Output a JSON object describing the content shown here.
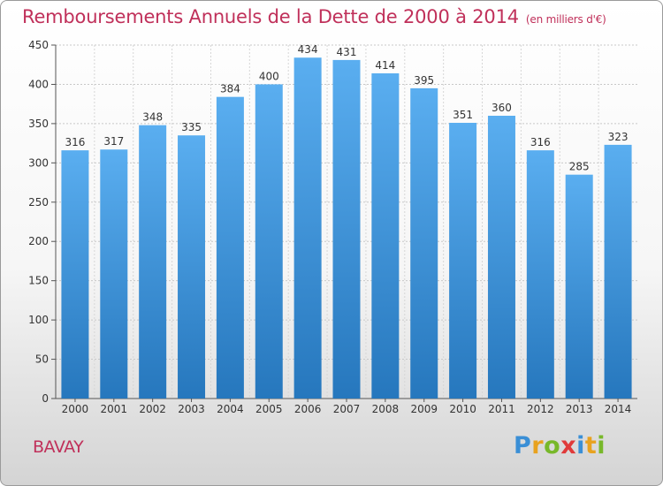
{
  "title": "Remboursements Annuels de la Dette de 2000 à 2014",
  "unit": "(en milliers d'€)",
  "commune": "BAVAY",
  "logo": [
    "P",
    "r",
    "o",
    "x",
    "i",
    "t",
    "i"
  ],
  "colors": {
    "bar_top": "#5aaef0",
    "bar_bottom": "#2677bd",
    "title": "#c0305a"
  },
  "chart_data": {
    "type": "bar",
    "categories": [
      "2000",
      "2001",
      "2002",
      "2003",
      "2004",
      "2005",
      "2006",
      "2007",
      "2008",
      "2009",
      "2010",
      "2011",
      "2012",
      "2013",
      "2014"
    ],
    "values": [
      316,
      317,
      348,
      335,
      384,
      400,
      434,
      431,
      414,
      395,
      351,
      360,
      316,
      285,
      323
    ],
    "ylim": [
      0,
      450
    ],
    "yticks": [
      0,
      50,
      100,
      150,
      200,
      250,
      300,
      350,
      400,
      450
    ],
    "grid": true
  }
}
